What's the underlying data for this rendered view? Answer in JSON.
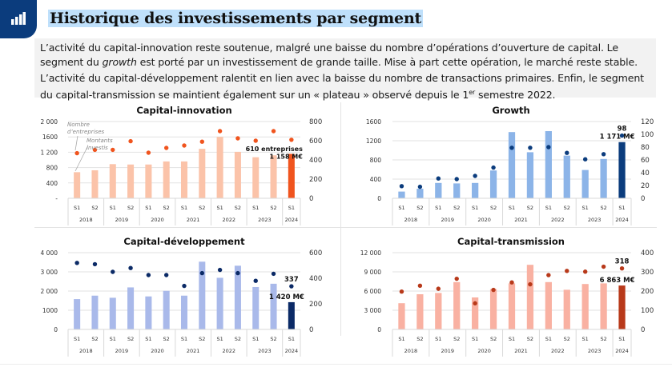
{
  "header": {
    "icon": "bar-chart-icon",
    "title": "Historique des investissements par segment"
  },
  "text": {
    "p1_a": "L’activité du capital-innovation reste soutenue, malgré une baisse du nombre d’opérations d’ouverture de capital. Le segment du ",
    "p1_em": "growth",
    "p1_b": " est porté par un investissement de grande taille. Mise à part cette opération, le marché reste stable.",
    "p2_a": "L’activité du capital-développement ralentit en lien avec la baisse du nombre de transactions primaires. Enfin, le segment du capital-transmission se maintient également sur un « plateau » observé depuis le 1",
    "p2_sup": "er",
    "p2_b": " semestre 2022."
  },
  "chart_data": [
    {
      "id": "capital-innovation",
      "type": "bar",
      "title": "Capital-innovation",
      "categories": [
        "S1",
        "S2",
        "S1",
        "S2",
        "S1",
        "S2",
        "S1",
        "S2",
        "S1",
        "S2",
        "S1",
        "S2",
        "S1"
      ],
      "years": [
        "2018",
        "2019",
        "2020",
        "2021",
        "2022",
        "2023",
        "2024"
      ],
      "series": [
        {
          "name": "Montants investis",
          "axis": "left",
          "kind": "bar",
          "values": [
            680,
            730,
            890,
            880,
            880,
            960,
            960,
            1290,
            1600,
            1210,
            1070,
            1120,
            1158
          ]
        },
        {
          "name": "Nombre d'entreprises",
          "axis": "right",
          "kind": "dot",
          "values": [
            470,
            505,
            505,
            595,
            475,
            525,
            550,
            590,
            700,
            625,
            600,
            700,
            610
          ]
        }
      ],
      "ylim": [
        0,
        2000
      ],
      "yticks": [
        "-",
        "400",
        "800",
        "1 200",
        "1600",
        "2 000"
      ],
      "y2lim": [
        0,
        800
      ],
      "y2ticks": [
        "0",
        "200",
        "400",
        "600",
        "800"
      ],
      "colors": {
        "bar": "#fbc3a9",
        "bar_last": "#f0541e",
        "dot": "#f0541e"
      },
      "labels": {
        "count": "610 entreprises",
        "amount": "1 158 M€"
      },
      "annotations": [
        "Nombre d’entreprises",
        "Montants investis"
      ],
      "grid": true
    },
    {
      "id": "growth",
      "type": "bar",
      "title": "Growth",
      "categories": [
        "S1",
        "S2",
        "S1",
        "S2",
        "S1",
        "S2",
        "S1",
        "S2",
        "S1",
        "S2",
        "S1",
        "S2",
        "S1"
      ],
      "years": [
        "2018",
        "2019",
        "2020",
        "2021",
        "2022",
        "2023",
        "2024"
      ],
      "series": [
        {
          "name": "Montants investis",
          "axis": "left",
          "kind": "bar",
          "values": [
            140,
            200,
            320,
            310,
            320,
            580,
            1380,
            960,
            1400,
            890,
            590,
            820,
            1171
          ]
        },
        {
          "name": "Nombre d'entreprises",
          "axis": "right",
          "kind": "dot",
          "values": [
            19,
            18,
            31,
            30,
            35,
            48,
            79,
            79,
            80,
            71,
            61,
            69,
            98
          ]
        }
      ],
      "ylim": [
        0,
        1600
      ],
      "yticks": [
        "0",
        "400",
        "800",
        "1200",
        "1600"
      ],
      "y2lim": [
        0,
        120
      ],
      "y2ticks": [
        "0",
        "20",
        "40",
        "60",
        "80",
        "100",
        "120"
      ],
      "colors": {
        "bar": "#8cb4e8",
        "bar_last": "#0b3c7d",
        "dot": "#0b3c7d"
      },
      "labels": {
        "count": "98",
        "amount": "1 171 M€"
      },
      "grid": true
    },
    {
      "id": "capital-developpement",
      "type": "bar",
      "title": "Capital-développement",
      "categories": [
        "S1",
        "S2",
        "S1",
        "S2",
        "S1",
        "S2",
        "S1",
        "S2",
        "S1",
        "S2",
        "S1",
        "S2",
        "S1"
      ],
      "years": [
        "2018",
        "2019",
        "2020",
        "2021",
        "2022",
        "2023",
        "2024"
      ],
      "series": [
        {
          "name": "Montants investis",
          "axis": "left",
          "kind": "bar",
          "values": [
            1580,
            1760,
            1650,
            2190,
            1720,
            2010,
            1760,
            3530,
            2690,
            3320,
            2210,
            2380,
            1420
          ]
        },
        {
          "name": "Nombre d'entreprises",
          "axis": "right",
          "kind": "dot",
          "values": [
            520,
            510,
            450,
            480,
            425,
            425,
            340,
            440,
            465,
            440,
            380,
            435,
            337
          ]
        }
      ],
      "ylim": [
        0,
        4000
      ],
      "yticks": [
        "0",
        "1000",
        "2 000",
        "3 000",
        "4 000"
      ],
      "y2lim": [
        0,
        600
      ],
      "y2ticks": [
        "0",
        "200",
        "400",
        "600"
      ],
      "colors": {
        "bar": "#a9b9ea",
        "bar_last": "#0b2a66",
        "dot": "#0b2a66"
      },
      "labels": {
        "count": "337",
        "amount": "1 420 M€"
      },
      "grid": true
    },
    {
      "id": "capital-transmission",
      "type": "bar",
      "title": "Capital-transmission",
      "categories": [
        "S1",
        "S2",
        "S1",
        "S2",
        "S1",
        "S2",
        "S1",
        "S2",
        "S1",
        "S2",
        "S1",
        "S2",
        "S1"
      ],
      "years": [
        "2018",
        "2019",
        "2020",
        "2021",
        "2022",
        "2023",
        "2024"
      ],
      "series": [
        {
          "name": "Montants investis",
          "axis": "left",
          "kind": "bar",
          "values": [
            4100,
            5500,
            5700,
            7400,
            5000,
            6300,
            7200,
            10100,
            7400,
            6200,
            7100,
            7200,
            6863
          ]
        },
        {
          "name": "Nombre d'entreprises",
          "axis": "right",
          "kind": "dot",
          "values": [
            197,
            228,
            212,
            264,
            136,
            206,
            245,
            235,
            283,
            305,
            301,
            327,
            318
          ]
        }
      ],
      "ylim": [
        0,
        12000
      ],
      "yticks": [
        "0",
        "3 000",
        "6 000",
        "9 000",
        "12 000"
      ],
      "y2lim": [
        0,
        400
      ],
      "y2ticks": [
        "0",
        "100",
        "200",
        "300",
        "400"
      ],
      "colors": {
        "bar": "#f9b1a2",
        "bar_last": "#b8391a",
        "dot": "#b8391a"
      },
      "labels": {
        "count": "318",
        "amount": "6 863 M€"
      },
      "grid": true
    }
  ]
}
